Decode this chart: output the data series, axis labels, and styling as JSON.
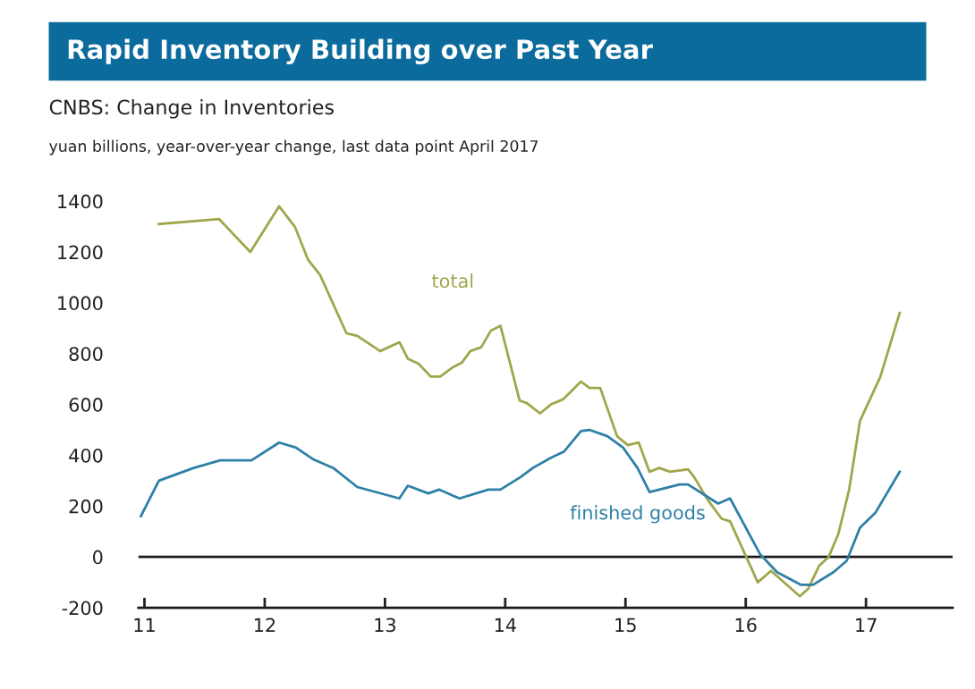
{
  "chart_data": {
    "type": "line",
    "title": "Rapid Inventory Building over Past Year",
    "subtitle": "CNBS: Change in Inventories",
    "annotations": [
      "yuan billions, year-over-year change, last data point April 2017"
    ],
    "xlim": [
      10.95,
      17.72
    ],
    "xticks": [
      11,
      12,
      13,
      14,
      15,
      16,
      17
    ],
    "ylim": [
      -200,
      1400
    ],
    "yticks": [
      -200,
      0,
      200,
      400,
      600,
      800,
      1000,
      1200,
      1400
    ],
    "ref_lines": [
      {
        "axis": "y",
        "value": 0,
        "color": "#1a1a1a"
      }
    ],
    "grid": false,
    "legend": false,
    "marker": "none",
    "line_style": "solid",
    "series": [
      {
        "name": "total",
        "color": "#a0a64c",
        "x": [
          11.12,
          11.62,
          11.88,
          12.12,
          12.25,
          12.36,
          12.46,
          12.68,
          12.77,
          12.96,
          13.12,
          13.19,
          13.28,
          13.38,
          13.46,
          13.56,
          13.64,
          13.71,
          13.8,
          13.88,
          13.96,
          14.12,
          14.18,
          14.29,
          14.38,
          14.48,
          14.63,
          14.7,
          14.79,
          14.93,
          15.02,
          15.11,
          15.2,
          15.28,
          15.37,
          15.52,
          15.57,
          15.69,
          15.8,
          15.87,
          16.1,
          16.21,
          16.45,
          16.52,
          16.61,
          16.69,
          16.77,
          16.86,
          16.95,
          17.12,
          17.28
        ],
        "values": [
          1310,
          1330,
          1200,
          1380,
          1300,
          1170,
          1110,
          880,
          870,
          810,
          845,
          780,
          760,
          710,
          710,
          745,
          765,
          810,
          825,
          890,
          910,
          615,
          605,
          565,
          600,
          620,
          690,
          665,
          665,
          475,
          440,
          450,
          335,
          350,
          335,
          345,
          315,
          220,
          150,
          140,
          -100,
          -55,
          -155,
          -125,
          -35,
          0,
          90,
          265,
          535,
          710,
          960
        ]
      },
      {
        "name": "finished goods",
        "color": "#2f80a6",
        "x": [
          10.97,
          11.12,
          11.41,
          11.63,
          11.89,
          12.12,
          12.26,
          12.4,
          12.57,
          12.77,
          13.12,
          13.19,
          13.36,
          13.45,
          13.62,
          13.86,
          13.96,
          14.13,
          14.23,
          14.38,
          14.49,
          14.63,
          14.7,
          14.85,
          14.98,
          15.1,
          15.2,
          15.45,
          15.52,
          15.77,
          15.87,
          16.12,
          16.26,
          16.46,
          16.56,
          16.73,
          16.84,
          16.95,
          17.08,
          17.28
        ],
        "values": [
          160,
          300,
          350,
          380,
          380,
          450,
          430,
          385,
          350,
          275,
          230,
          280,
          250,
          265,
          230,
          265,
          265,
          315,
          350,
          390,
          415,
          495,
          500,
          475,
          430,
          350,
          255,
          285,
          285,
          210,
          230,
          10,
          -60,
          -110,
          -110,
          -60,
          -15,
          115,
          175,
          335
        ]
      }
    ]
  }
}
